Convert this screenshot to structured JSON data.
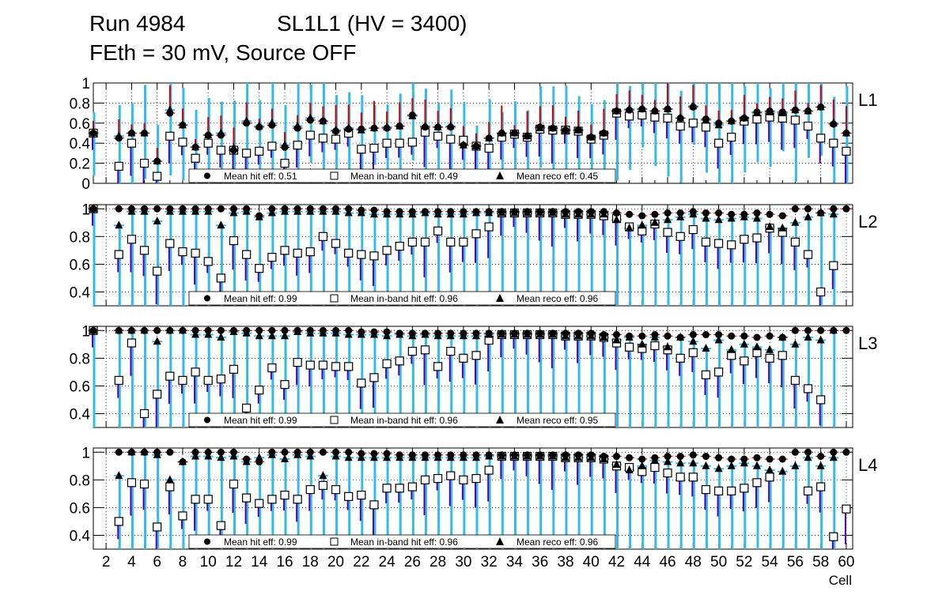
{
  "header": {
    "run": "Run 4984",
    "chamber": "SL1L1 (HV = 3400)",
    "settings": "FEth = 30 mV, Source OFF"
  },
  "chart_data": {
    "type": "scatter",
    "xlabel": "Cell",
    "x_ticks": [
      "2",
      "4",
      "6",
      "8",
      "10",
      "12",
      "14",
      "16",
      "18",
      "20",
      "22",
      "24",
      "26",
      "28",
      "30",
      "32",
      "34",
      "36",
      "38",
      "40",
      "42",
      "44",
      "46",
      "48",
      "50",
      "52",
      "54",
      "56",
      "58",
      "60"
    ],
    "xlim": [
      1,
      60.5
    ],
    "colors": {
      "err_hit": "#cc0000",
      "err_inband": "#5500aa",
      "err_reco": "#33bbee",
      "marker": "#000000"
    },
    "panels": [
      {
        "name": "L1",
        "ylim": [
          0,
          1
        ],
        "y_ticks": [
          "0",
          "0.2",
          "0.4",
          "0.6",
          "0.8",
          "1"
        ],
        "legend": {
          "hit": "Mean hit  eff: 0.51",
          "inband": "Mean in-band hit eff: 0.49",
          "reco": "Mean reco eff: 0.45"
        },
        "hit": [
          0.5,
          null,
          0.45,
          0.5,
          0.5,
          0.22,
          0.7,
          0.58,
          0.36,
          0.48,
          0.48,
          0.33,
          0.6,
          0.56,
          0.58,
          0.36,
          0.55,
          0.63,
          0.62,
          0.52,
          0.54,
          0.54,
          0.55,
          0.55,
          0.57,
          0.68,
          0.56,
          0.56,
          0.56,
          0.38,
          0.37,
          0.45,
          0.5,
          0.5,
          0.47,
          0.56,
          0.55,
          0.53,
          0.53,
          0.46,
          0.5,
          0.72,
          0.73,
          0.74,
          0.72,
          0.74,
          0.65,
          0.76,
          0.64,
          0.6,
          0.62,
          0.65,
          0.71,
          0.72,
          0.71,
          0.73,
          0.72,
          0.76,
          0.59,
          0.5
        ],
        "inband": [
          0.5,
          null,
          0.17,
          0.4,
          0.2,
          0.07,
          0.47,
          0.41,
          0.25,
          0.4,
          0.33,
          0.33,
          0.3,
          0.32,
          0.37,
          0.2,
          0.38,
          0.48,
          0.45,
          0.44,
          0.5,
          0.34,
          0.35,
          0.4,
          0.4,
          0.41,
          0.51,
          0.47,
          0.44,
          0.43,
          0.37,
          0.35,
          0.46,
          0.49,
          0.46,
          0.54,
          0.53,
          0.53,
          0.52,
          0.44,
          0.48,
          0.7,
          0.67,
          0.68,
          0.66,
          0.65,
          0.57,
          0.6,
          0.56,
          0.4,
          0.46,
          0.62,
          0.64,
          0.66,
          0.65,
          0.63,
          0.57,
          0.45,
          0.4,
          0.32
        ],
        "reco": [
          0.5,
          null,
          0.47,
          0.5,
          0.5,
          0.22,
          0.73,
          0.58,
          0.36,
          0.48,
          0.5,
          0.35,
          0.62,
          0.57,
          0.6,
          0.38,
          0.57,
          0.65,
          0.62,
          0.53,
          0.55,
          0.53,
          0.55,
          0.56,
          0.57,
          0.67,
          0.57,
          0.56,
          0.57,
          0.38,
          0.37,
          0.45,
          0.5,
          0.5,
          0.47,
          0.55,
          0.55,
          0.53,
          0.53,
          0.46,
          0.5,
          0.72,
          0.74,
          0.74,
          0.72,
          0.74,
          0.65,
          0.77,
          0.63,
          0.58,
          0.62,
          0.65,
          0.7,
          0.71,
          0.7,
          0.73,
          0.72,
          0.76,
          0.6,
          0.5
        ]
      },
      {
        "name": "L2",
        "ylim": [
          0.3,
          1.03
        ],
        "y_ticks": [
          "0.4",
          "0.6",
          "0.8",
          "1"
        ],
        "legend": {
          "hit": "Mean hit  eff: 0.99",
          "inband": "Mean in-band hit eff: 0.96",
          "reco": "Mean reco eff: 0.96"
        },
        "hit": [
          1,
          null,
          1,
          1,
          1,
          1,
          1,
          1,
          1,
          1,
          1,
          1,
          1,
          0.95,
          1,
          1,
          1,
          1,
          1,
          1,
          1,
          0.99,
          0.99,
          0.98,
          0.98,
          0.98,
          0.98,
          0.98,
          0.98,
          0.98,
          0.98,
          0.98,
          0.98,
          0.98,
          0.98,
          0.98,
          0.98,
          0.98,
          0.98,
          0.98,
          0.98,
          0.97,
          0.96,
          0.95,
          0.96,
          0.97,
          0.97,
          0.98,
          0.97,
          0.97,
          0.96,
          0.96,
          0.97,
          0.96,
          0.95,
          1,
          1,
          0.97,
          1,
          1
        ],
        "inband": [
          1,
          null,
          0.67,
          0.78,
          0.7,
          0.55,
          0.75,
          0.69,
          0.68,
          0.62,
          0.5,
          0.77,
          0.67,
          0.57,
          0.65,
          0.7,
          0.68,
          0.69,
          0.8,
          0.75,
          0.68,
          0.67,
          0.66,
          0.7,
          0.73,
          0.76,
          0.76,
          0.84,
          0.76,
          0.76,
          0.82,
          0.87,
          0.97,
          0.97,
          0.97,
          0.97,
          0.97,
          0.96,
          0.96,
          0.96,
          0.95,
          0.93,
          0.87,
          0.84,
          0.89,
          0.83,
          0.8,
          0.85,
          0.76,
          0.75,
          0.74,
          0.78,
          0.79,
          0.86,
          0.83,
          0.76,
          0.67,
          0.4,
          0.59,
          null
        ],
        "reco": [
          1,
          null,
          0.88,
          0.98,
          0.98,
          0.91,
          0.98,
          0.98,
          0.98,
          0.98,
          0.88,
          0.97,
          0.98,
          0.94,
          0.97,
          0.98,
          0.98,
          0.98,
          0.98,
          0.98,
          0.97,
          0.97,
          0.96,
          0.96,
          0.96,
          0.96,
          0.97,
          0.96,
          0.96,
          0.96,
          0.97,
          0.97,
          0.97,
          0.97,
          0.97,
          0.97,
          0.97,
          0.96,
          0.96,
          0.96,
          0.96,
          0.92,
          0.86,
          0.88,
          0.9,
          0.92,
          0.94,
          0.96,
          0.93,
          0.92,
          0.93,
          0.94,
          0.93,
          0.87,
          0.86,
          0.9,
          0.94,
          0.97,
          0.96,
          null
        ]
      },
      {
        "name": "L3",
        "ylim": [
          0.3,
          1.03
        ],
        "y_ticks": [
          "0.4",
          "0.6",
          "0.8",
          "1"
        ],
        "legend": {
          "hit": "Mean hit  eff: 0.99",
          "inband": "Mean in-band hit eff: 0.96",
          "reco": "Mean reco eff: 0.95"
        },
        "hit": [
          1,
          null,
          1,
          1,
          1,
          1,
          1,
          1,
          1,
          1,
          1,
          1,
          1,
          1,
          1,
          1,
          1,
          1,
          1,
          1,
          1,
          0.99,
          0.99,
          0.99,
          0.98,
          0.98,
          0.98,
          0.98,
          0.98,
          0.98,
          0.98,
          0.98,
          0.98,
          0.98,
          0.98,
          0.98,
          0.98,
          0.98,
          0.98,
          0.98,
          0.97,
          0.97,
          0.96,
          0.96,
          0.97,
          0.96,
          0.95,
          0.97,
          0.97,
          0.97,
          0.96,
          0.96,
          0.95,
          0.96,
          0.95,
          1,
          1,
          1,
          1,
          1
        ],
        "inband": [
          1,
          null,
          0.64,
          0.91,
          0.4,
          0.54,
          0.67,
          0.64,
          0.7,
          0.64,
          0.65,
          0.72,
          0.44,
          0.57,
          0.73,
          0.61,
          0.77,
          0.75,
          0.75,
          0.74,
          0.74,
          0.62,
          0.66,
          0.76,
          0.78,
          0.85,
          0.86,
          0.74,
          0.85,
          0.8,
          0.82,
          0.93,
          0.97,
          0.97,
          0.97,
          0.97,
          0.97,
          0.96,
          0.96,
          0.96,
          0.95,
          0.91,
          0.88,
          0.87,
          0.89,
          0.86,
          0.8,
          0.84,
          0.68,
          0.7,
          0.82,
          0.78,
          0.84,
          0.8,
          0.82,
          0.64,
          0.58,
          0.5,
          null,
          null
        ],
        "reco": [
          1,
          null,
          1,
          1,
          1,
          0.92,
          1,
          1,
          0.97,
          0.97,
          0.95,
          0.99,
          0.98,
          0.96,
          0.96,
          0.96,
          0.99,
          0.98,
          0.98,
          0.98,
          0.97,
          0.97,
          0.97,
          0.96,
          0.97,
          0.96,
          0.97,
          0.96,
          0.96,
          0.96,
          0.96,
          0.97,
          0.97,
          0.97,
          0.97,
          0.97,
          0.97,
          0.96,
          0.96,
          0.96,
          0.95,
          0.93,
          0.95,
          0.9,
          0.95,
          0.88,
          0.95,
          0.92,
          0.87,
          0.93,
          0.86,
          0.9,
          0.88,
          0.86,
          0.95,
          0.9,
          0.95,
          0.93,
          1,
          null
        ]
      },
      {
        "name": "L4",
        "ylim": [
          0.3,
          1.03
        ],
        "y_ticks": [
          "0.4",
          "0.6",
          "0.8",
          "1"
        ],
        "legend": {
          "hit": "Mean hit  eff: 0.99",
          "inband": "Mean in-band hit eff: 0.96",
          "reco": "Mean reco eff: 0.96"
        },
        "hit": [
          null,
          null,
          1,
          1,
          1,
          1,
          1,
          0.93,
          1,
          1,
          1,
          1,
          0.95,
          0.93,
          1,
          1,
          1,
          1,
          1,
          1,
          1,
          0.99,
          0.99,
          0.99,
          0.98,
          0.98,
          0.98,
          0.98,
          0.98,
          0.98,
          0.98,
          0.98,
          0.98,
          0.98,
          0.98,
          0.98,
          0.98,
          0.98,
          0.98,
          0.98,
          0.97,
          0.97,
          0.96,
          0.95,
          0.96,
          0.97,
          0.97,
          0.98,
          0.97,
          0.96,
          0.95,
          0.95,
          0.96,
          0.95,
          0.95,
          1,
          1,
          0.97,
          1,
          1
        ],
        "inband": [
          null,
          null,
          0.5,
          0.78,
          0.77,
          0.46,
          0.75,
          0.54,
          0.66,
          0.66,
          0.47,
          0.77,
          0.67,
          0.63,
          0.66,
          0.69,
          0.66,
          0.73,
          0.76,
          0.73,
          0.68,
          0.69,
          0.62,
          0.74,
          0.74,
          0.75,
          0.8,
          0.81,
          0.83,
          0.8,
          0.81,
          0.87,
          0.97,
          0.97,
          0.97,
          0.97,
          0.97,
          0.96,
          0.96,
          0.96,
          0.95,
          0.9,
          0.89,
          0.86,
          0.89,
          0.85,
          0.82,
          0.82,
          0.73,
          0.72,
          0.72,
          0.74,
          0.78,
          0.82,
          null,
          null,
          0.72,
          0.75,
          0.39,
          0.59
        ],
        "reco": [
          null,
          null,
          0.83,
          1,
          1,
          0.98,
          0.8,
          0.93,
          0.97,
          0.97,
          0.96,
          0.97,
          0.93,
          0.96,
          0.98,
          0.95,
          0.98,
          0.97,
          0.83,
          0.97,
          0.96,
          0.96,
          0.96,
          0.96,
          0.96,
          0.96,
          0.96,
          0.96,
          0.96,
          0.96,
          0.96,
          0.97,
          0.97,
          0.97,
          0.97,
          0.97,
          0.97,
          0.96,
          0.96,
          0.96,
          0.95,
          0.91,
          0.87,
          0.9,
          0.94,
          0.93,
          0.92,
          0.92,
          0.9,
          0.88,
          0.9,
          0.92,
          0.9,
          0.87,
          0.86,
          0.9,
          0.96,
          0.9,
          0.96,
          null
        ]
      }
    ]
  }
}
